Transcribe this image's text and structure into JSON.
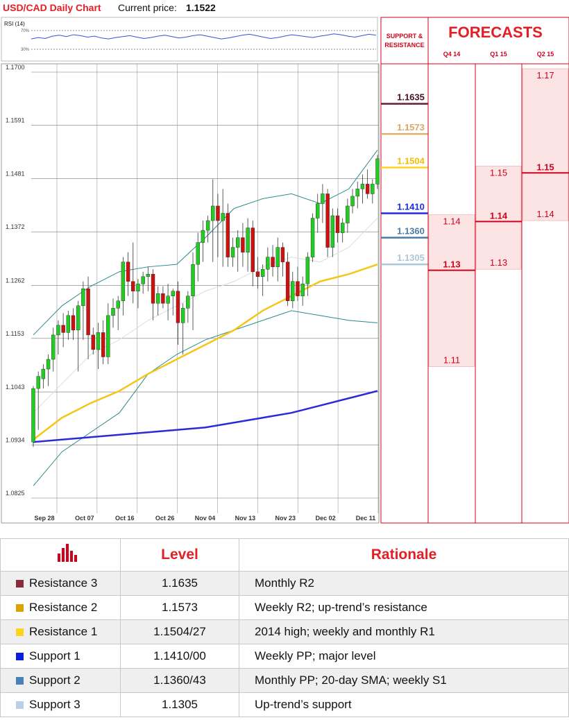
{
  "header": {
    "title": "USD/CAD Daily Chart",
    "price_label": "Current price:",
    "price_value": "1.1522"
  },
  "rsi": {
    "label": "RSI (14)",
    "upper": "70%",
    "lower": "30%",
    "values": [
      52,
      55,
      53,
      58,
      60,
      57,
      61,
      59,
      56,
      58,
      54,
      52,
      55,
      57,
      59,
      56,
      53,
      55,
      58,
      60,
      57,
      54,
      56,
      59,
      61,
      58,
      55,
      52,
      54,
      57,
      60,
      62,
      59,
      56,
      53,
      55,
      58,
      61,
      59,
      57,
      55,
      58,
      60,
      63,
      61,
      58,
      56,
      59,
      62,
      60
    ]
  },
  "colors": {
    "accent": "#e31e24",
    "resistance3": "#6b1a33",
    "resistance2": "#e0b070",
    "resistance1": "#ffd21f",
    "support1": "#1a2ee0",
    "support2": "#4a7aa3",
    "support3": "#a8c8d8",
    "bull": "#22cc22",
    "bear": "#cc1111",
    "sma_slow": "#2a2ad8",
    "sma_mid": "#f5c518",
    "band": "#2a8a8a"
  },
  "chart_data": {
    "type": "line",
    "title": "USD/CAD Daily Chart",
    "ylim": [
      1.0825,
      1.17
    ],
    "y_ticks": [
      "1.1700",
      "1.1591",
      "1.1481",
      "1.1372",
      "1.1262",
      "1.1153",
      "1.1043",
      "1.0934",
      "1.0825"
    ],
    "x_ticks": [
      "Sep 28",
      "Oct 07",
      "Oct 16",
      "Oct 26",
      "Nov 04",
      "Nov 13",
      "Nov 23",
      "Dec 02",
      "Dec 11"
    ],
    "candles": [
      [
        1.094,
        1.1055,
        1.093,
        1.105
      ],
      [
        1.105,
        1.1085,
        1.0965,
        1.1075
      ],
      [
        1.107,
        1.11,
        1.105,
        1.109
      ],
      [
        1.109,
        1.112,
        1.1055,
        1.111
      ],
      [
        1.111,
        1.1175,
        1.1085,
        1.116
      ],
      [
        1.116,
        1.119,
        1.112,
        1.118
      ],
      [
        1.118,
        1.1205,
        1.1135,
        1.1165
      ],
      [
        1.1165,
        1.121,
        1.115,
        1.12
      ],
      [
        1.12,
        1.1215,
        1.115,
        1.117
      ],
      [
        1.117,
        1.123,
        1.1085,
        1.122
      ],
      [
        1.122,
        1.127,
        1.115,
        1.1255
      ],
      [
        1.1255,
        1.128,
        1.111,
        1.116
      ],
      [
        1.116,
        1.1175,
        1.112,
        1.113
      ],
      [
        1.113,
        1.1185,
        1.109,
        1.1165
      ],
      [
        1.1165,
        1.119,
        1.11,
        1.1115
      ],
      [
        1.1115,
        1.1225,
        1.11,
        1.12
      ],
      [
        1.12,
        1.1235,
        1.1175,
        1.1215
      ],
      [
        1.1215,
        1.124,
        1.117,
        1.123
      ],
      [
        1.123,
        1.132,
        1.12,
        1.131
      ],
      [
        1.131,
        1.133,
        1.124,
        1.127
      ],
      [
        1.127,
        1.135,
        1.1225,
        1.125
      ],
      [
        1.125,
        1.1275,
        1.1215,
        1.1265
      ],
      [
        1.1265,
        1.129,
        1.1245,
        1.128
      ],
      [
        1.128,
        1.13,
        1.125,
        1.1285
      ],
      [
        1.1285,
        1.1295,
        1.119,
        1.1225
      ],
      [
        1.1225,
        1.126,
        1.12,
        1.1245
      ],
      [
        1.1245,
        1.126,
        1.1215,
        1.1225
      ],
      [
        1.1225,
        1.1265,
        1.119,
        1.124
      ],
      [
        1.124,
        1.1255,
        1.12,
        1.125
      ],
      [
        1.125,
        1.127,
        1.114,
        1.1185
      ],
      [
        1.1185,
        1.1225,
        1.112,
        1.1215
      ],
      [
        1.1215,
        1.125,
        1.1185,
        1.124
      ],
      [
        1.124,
        1.133,
        1.117,
        1.1305
      ],
      [
        1.1305,
        1.137,
        1.127,
        1.135
      ],
      [
        1.135,
        1.1395,
        1.131,
        1.1375
      ],
      [
        1.1375,
        1.1405,
        1.135,
        1.1395
      ],
      [
        1.1395,
        1.148,
        1.131,
        1.1425
      ],
      [
        1.1425,
        1.145,
        1.132,
        1.1395
      ],
      [
        1.1395,
        1.146,
        1.13,
        1.141
      ],
      [
        1.141,
        1.143,
        1.13,
        1.132
      ],
      [
        1.132,
        1.136,
        1.13,
        1.134
      ],
      [
        1.134,
        1.1375,
        1.129,
        1.136
      ],
      [
        1.136,
        1.139,
        1.13,
        1.133
      ],
      [
        1.133,
        1.14,
        1.129,
        1.138
      ],
      [
        1.138,
        1.1395,
        1.126,
        1.129
      ],
      [
        1.129,
        1.132,
        1.1255,
        1.128
      ],
      [
        1.128,
        1.1305,
        1.124,
        1.1295
      ],
      [
        1.1295,
        1.134,
        1.127,
        1.132
      ],
      [
        1.132,
        1.1345,
        1.128,
        1.13
      ],
      [
        1.13,
        1.136,
        1.127,
        1.134
      ],
      [
        1.134,
        1.135,
        1.128,
        1.131
      ],
      [
        1.131,
        1.133,
        1.122,
        1.123
      ],
      [
        1.123,
        1.129,
        1.1215,
        1.127
      ],
      [
        1.127,
        1.13,
        1.123,
        1.124
      ],
      [
        1.124,
        1.128,
        1.122,
        1.1265
      ],
      [
        1.1265,
        1.133,
        1.124,
        1.132
      ],
      [
        1.132,
        1.141,
        1.131,
        1.14
      ],
      [
        1.14,
        1.145,
        1.137,
        1.143
      ],
      [
        1.143,
        1.147,
        1.139,
        1.145
      ],
      [
        1.145,
        1.146,
        1.132,
        1.134
      ],
      [
        1.134,
        1.142,
        1.132,
        1.1405
      ],
      [
        1.1405,
        1.142,
        1.135,
        1.137
      ],
      [
        1.137,
        1.14,
        1.135,
        1.139
      ],
      [
        1.139,
        1.144,
        1.137,
        1.1425
      ],
      [
        1.1425,
        1.146,
        1.141,
        1.1445
      ],
      [
        1.1445,
        1.1475,
        1.142,
        1.146
      ],
      [
        1.146,
        1.149,
        1.143,
        1.147
      ],
      [
        1.147,
        1.15,
        1.144,
        1.145
      ],
      [
        1.145,
        1.148,
        1.143,
        1.147
      ],
      [
        1.147,
        1.153,
        1.146,
        1.1522
      ]
    ],
    "sma_slow": [
      1.094,
      1.0945,
      1.095,
      1.0955,
      1.096,
      1.0965,
      1.097,
      1.098,
      1.099,
      1.1,
      1.1015,
      1.103,
      1.1045
    ],
    "sma_mid": [
      1.0945,
      1.099,
      1.102,
      1.1045,
      1.108,
      1.111,
      1.114,
      1.117,
      1.121,
      1.124,
      1.127,
      1.1285,
      1.1305
    ],
    "bb_upper": [
      1.116,
      1.122,
      1.126,
      1.129,
      1.13,
      1.1305,
      1.136,
      1.142,
      1.144,
      1.145,
      1.143,
      1.146,
      1.154
    ],
    "bb_lower": [
      1.085,
      1.092,
      1.096,
      1.1,
      1.108,
      1.112,
      1.115,
      1.117,
      1.119,
      1.121,
      1.12,
      1.119,
      1.1185
    ],
    "sma_fast": [
      1.1,
      1.106,
      1.112,
      1.115,
      1.119,
      1.122,
      1.125,
      1.127,
      1.13,
      1.132,
      1.131,
      1.134,
      1.14
    ]
  },
  "sr_panel": {
    "title_line1": "SUPPORT &",
    "title_line2": "RESISTANCE",
    "levels": [
      {
        "value": "1.1635",
        "color": "#6b1a33",
        "text_color": "#4a0f22",
        "y": 1.1635
      },
      {
        "value": "1.1573",
        "color": "#e0b070",
        "text_color": "#d8a860",
        "y": 1.1573
      },
      {
        "value": "1.1504",
        "color": "#ffd21f",
        "text_color": "#f2c000",
        "y": 1.1504
      },
      {
        "value": "1.1410",
        "color": "#1a2ee0",
        "text_color": "#1a2ee0",
        "y": 1.141
      },
      {
        "value": "1.1360",
        "color": "#4a7aa3",
        "text_color": "#4a7aa3",
        "y": 1.136
      },
      {
        "value": "1.1305",
        "color": "#a8c8d8",
        "text_color": "#a8c8d8",
        "y": 1.1305
      }
    ]
  },
  "forecasts": {
    "title": "FORECASTS",
    "columns": [
      {
        "label": "Q4 14",
        "min": "1.11",
        "median": "1.13",
        "max": "1.14"
      },
      {
        "label": "Q1 15",
        "min": "1.13",
        "median": "1.14",
        "max": "1.15"
      },
      {
        "label": "Q2 15",
        "min": "1.14",
        "median": "1.15",
        "max": "1.17"
      }
    ]
  },
  "table": {
    "headers": {
      "level": "Level",
      "rationale": "Rationale"
    },
    "rows": [
      {
        "name": "Resistance 3",
        "level": "1.1635",
        "rationale": "Monthly R2",
        "color": "#8b2a3a"
      },
      {
        "name": "Resistance 2",
        "level": "1.1573",
        "rationale": "Weekly R2; up-trend’s resistance",
        "color": "#d9a300"
      },
      {
        "name": "Resistance 1",
        "level": "1.1504/27",
        "rationale": "2014 high; weekly and monthly R1",
        "color": "#ffd21f"
      },
      {
        "name": "Support 1",
        "level": "1.1410/00",
        "rationale": "Weekly PP; major level",
        "color": "#0a1ee0"
      },
      {
        "name": "Support 2",
        "level": "1.1360/43",
        "rationale": "Monthly PP; 20-day SMA; weekly S1",
        "color": "#4a80b8"
      },
      {
        "name": "Support 3",
        "level": "1.1305",
        "rationale": "Up-trend’s support",
        "color": "#b8d0e8"
      }
    ]
  }
}
